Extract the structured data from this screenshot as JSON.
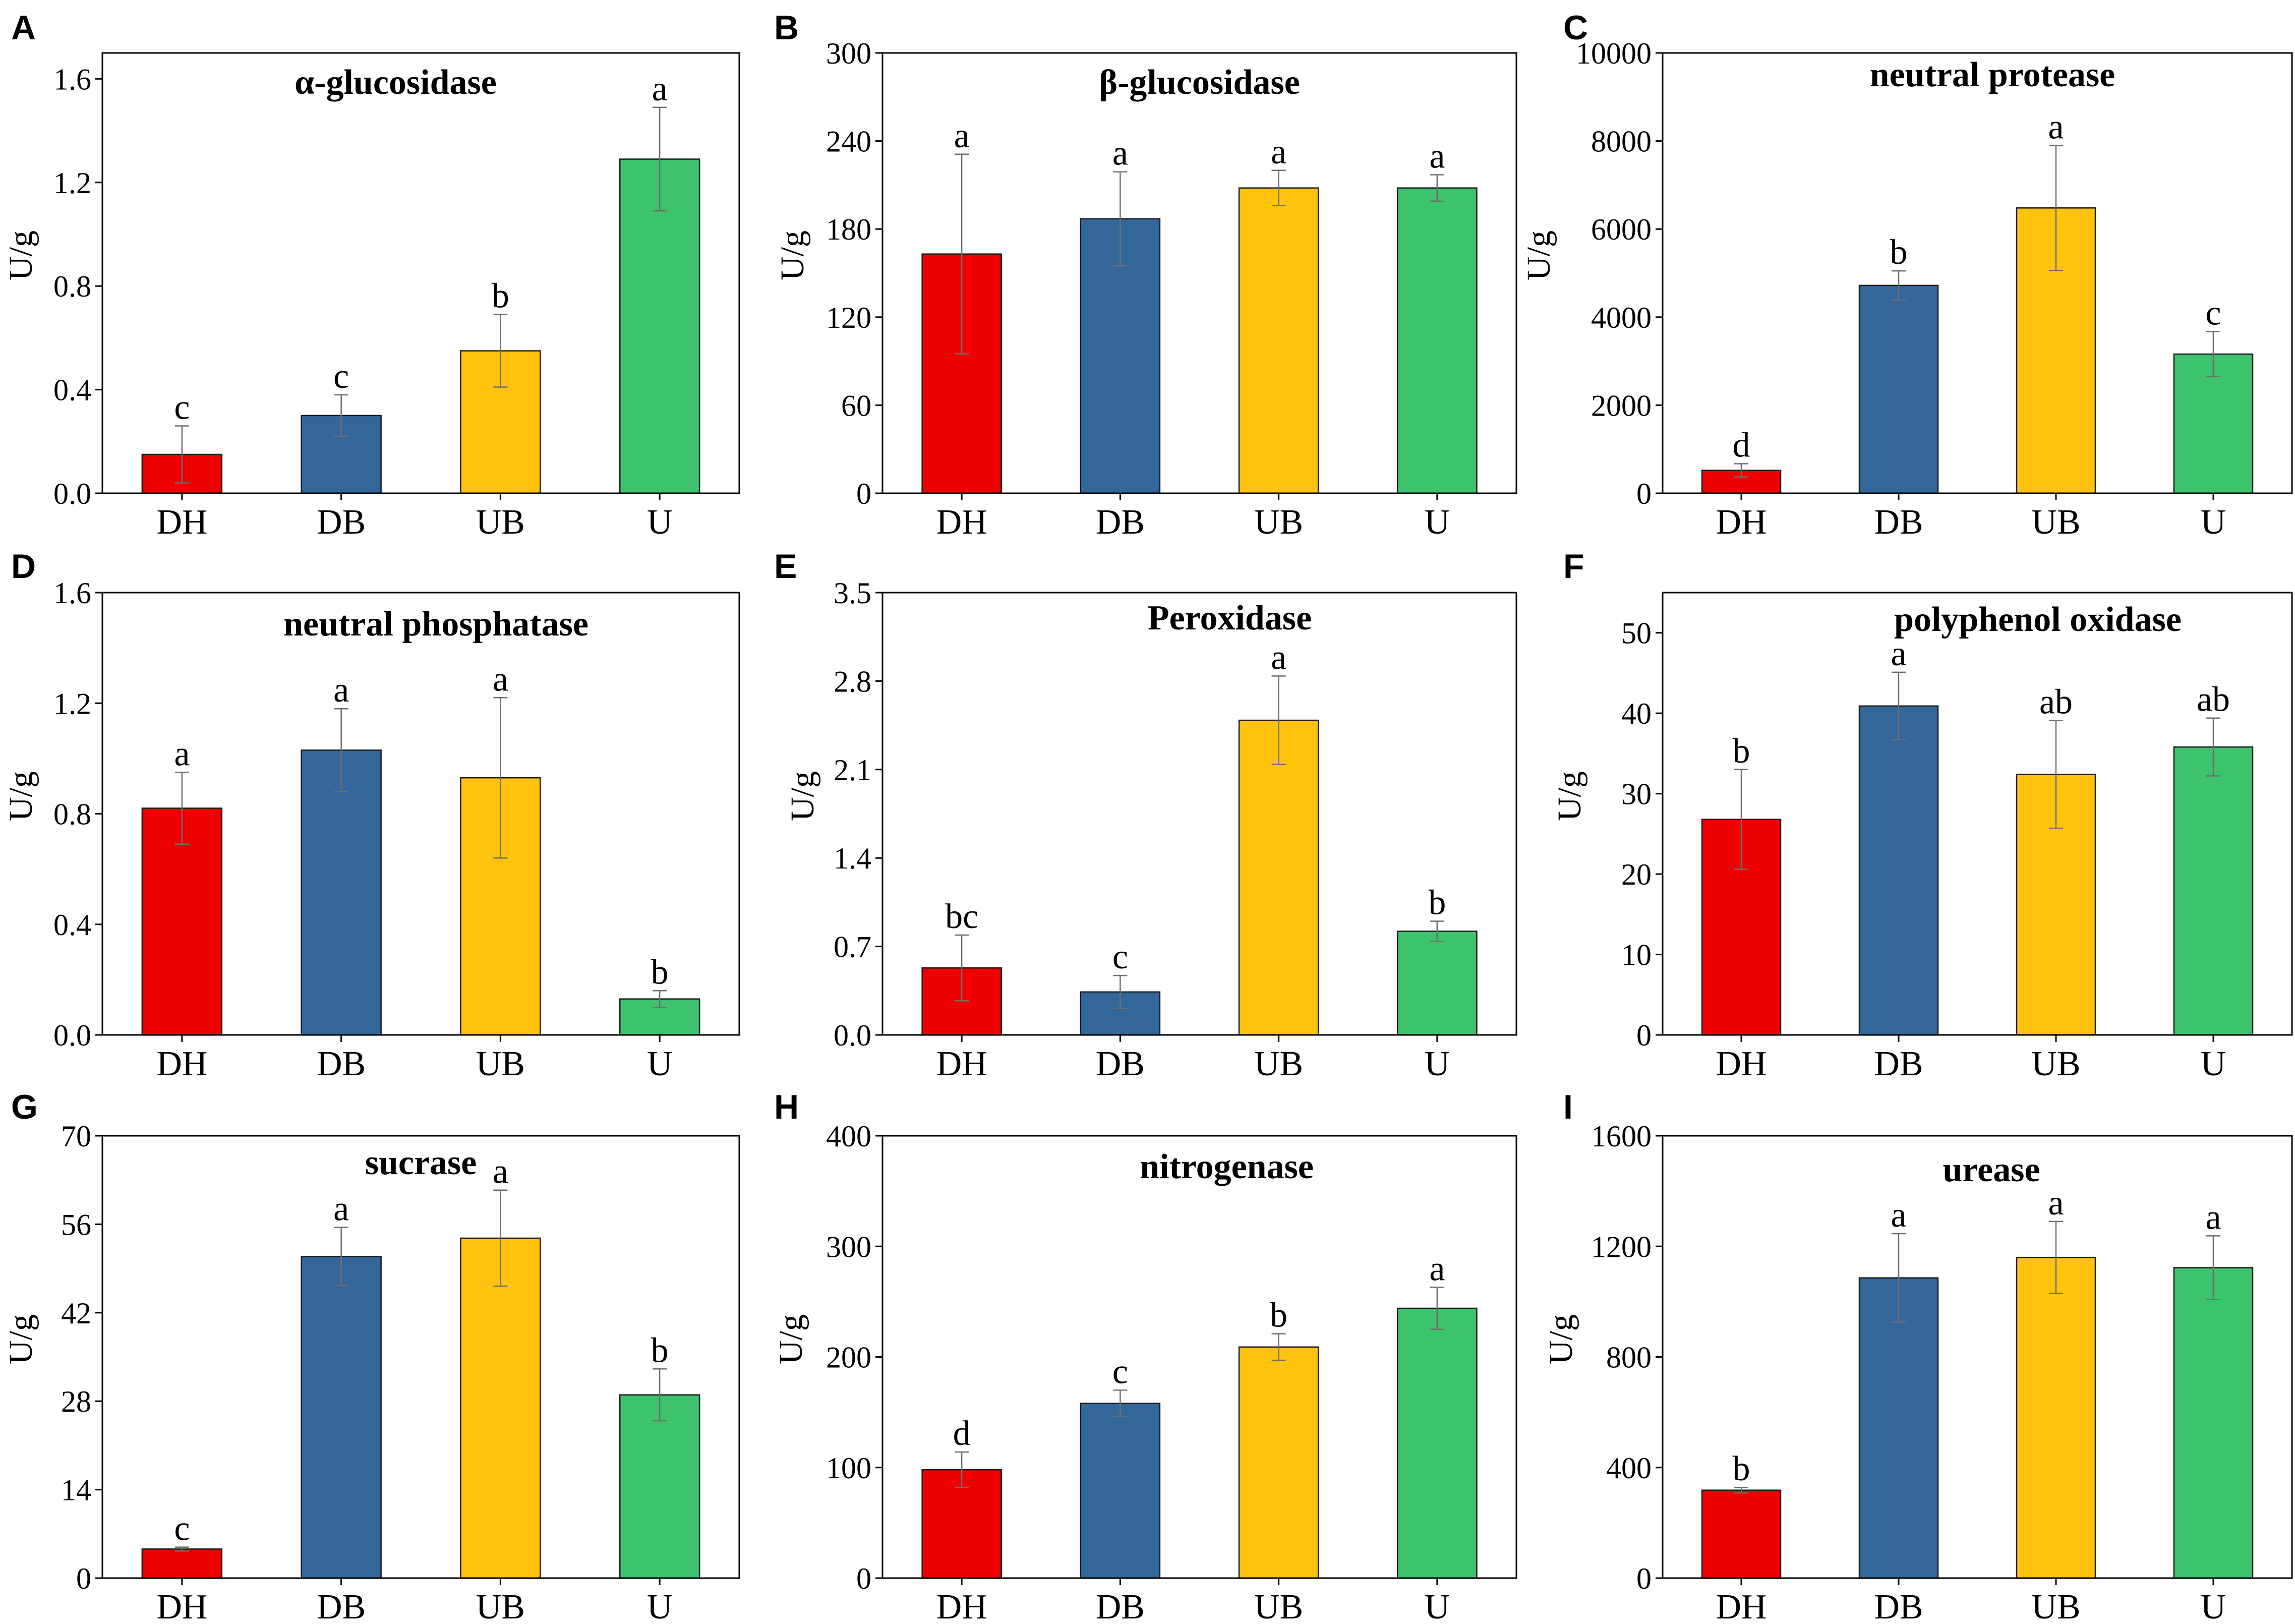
{
  "colors": {
    "DH": "#EE0000",
    "DB": "#336699",
    "UB": "#FFC20E",
    "U": "#3DC26D",
    "error_bar": "#6e6e6e"
  },
  "chart_data": [
    {
      "panel": "A",
      "type": "bar",
      "title": "α-glucosidase",
      "ylabel": "U/g",
      "categories": [
        "DH",
        "DB",
        "UB",
        "U"
      ],
      "values": [
        0.15,
        0.3,
        0.55,
        1.29
      ],
      "errors": [
        0.11,
        0.08,
        0.14,
        0.2
      ],
      "significance": [
        "c",
        "c",
        "b",
        "a"
      ],
      "ylim": [
        0,
        1.7
      ],
      "yticks": [
        "0.0",
        "0.4",
        "0.8",
        "1.2",
        "1.6"
      ]
    },
    {
      "panel": "B",
      "type": "bar",
      "title": "β-glucosidase",
      "ylabel": "U/g",
      "categories": [
        "DH",
        "DB",
        "UB",
        "U"
      ],
      "values": [
        163,
        187,
        208,
        208
      ],
      "errors": [
        68,
        32,
        12,
        9
      ],
      "significance": [
        "a",
        "a",
        "a",
        "a"
      ],
      "ylim": [
        0,
        300
      ],
      "yticks": [
        "0",
        "60",
        "120",
        "180",
        "240",
        "300"
      ]
    },
    {
      "panel": "C",
      "type": "bar",
      "title": "neutral protease",
      "ylabel": "U/g",
      "categories": [
        "DH",
        "DB",
        "UB",
        "U"
      ],
      "values": [
        520,
        4720,
        6480,
        3160
      ],
      "errors": [
        150,
        330,
        1420,
        510
      ],
      "significance": [
        "d",
        "b",
        "a",
        "c"
      ],
      "ylim": [
        0,
        10000
      ],
      "yticks": [
        "0",
        "2000",
        "4000",
        "6000",
        "8000",
        "10000"
      ]
    },
    {
      "panel": "D",
      "type": "bar",
      "title": "neutral phosphatase",
      "ylabel": "U/g",
      "categories": [
        "DH",
        "DB",
        "UB",
        "U"
      ],
      "values": [
        0.82,
        1.03,
        0.93,
        0.13
      ],
      "errors": [
        0.13,
        0.15,
        0.29,
        0.03
      ],
      "significance": [
        "a",
        "a",
        "a",
        "b"
      ],
      "ylim": [
        0,
        1.6
      ],
      "yticks": [
        "0.0",
        "0.4",
        "0.8",
        "1.2",
        "1.6"
      ]
    },
    {
      "panel": "E",
      "type": "bar",
      "title": "Peroxidase",
      "ylabel": "U/g",
      "categories": [
        "DH",
        "DB",
        "UB",
        "U"
      ],
      "values": [
        0.53,
        0.34,
        2.49,
        0.82
      ],
      "errors": [
        0.26,
        0.13,
        0.35,
        0.08
      ],
      "significance": [
        "bc",
        "c",
        "a",
        "b"
      ],
      "ylim": [
        0,
        3.5
      ],
      "yticks": [
        "0.0",
        "0.7",
        "1.4",
        "2.1",
        "2.8",
        "3.5"
      ]
    },
    {
      "panel": "F",
      "type": "bar",
      "title": "polyphenol oxidase",
      "ylabel": "U/g",
      "categories": [
        "DH",
        "DB",
        "UB",
        "U"
      ],
      "values": [
        26.8,
        40.9,
        32.4,
        35.8
      ],
      "errors": [
        6.2,
        4.2,
        6.7,
        3.6
      ],
      "significance": [
        "b",
        "a",
        "ab",
        "ab"
      ],
      "ylim": [
        0,
        55
      ],
      "yticks": [
        "0",
        "10",
        "20",
        "30",
        "40",
        "50"
      ]
    },
    {
      "panel": "G",
      "type": "bar",
      "title": "sucrase",
      "ylabel": "U/g",
      "categories": [
        "DH",
        "DB",
        "UB",
        "U"
      ],
      "values": [
        4.6,
        50.9,
        53.8,
        29.0
      ],
      "errors": [
        0.3,
        4.6,
        7.6,
        4.1
      ],
      "significance": [
        "c",
        "a",
        "a",
        "b"
      ],
      "ylim": [
        0,
        70
      ],
      "yticks": [
        "0",
        "14",
        "28",
        "42",
        "56",
        "70"
      ]
    },
    {
      "panel": "H",
      "type": "bar",
      "title": "nitrogenase",
      "ylabel": "U/g",
      "categories": [
        "DH",
        "DB",
        "UB",
        "U"
      ],
      "values": [
        98,
        158,
        209,
        244
      ],
      "errors": [
        16,
        12,
        12,
        19
      ],
      "significance": [
        "d",
        "c",
        "b",
        "a"
      ],
      "ylim": [
        0,
        400
      ],
      "yticks": [
        "0",
        "100",
        "200",
        "300",
        "400"
      ]
    },
    {
      "panel": "I",
      "type": "bar",
      "title": "urease",
      "ylabel": "U/g",
      "categories": [
        "DH",
        "DB",
        "UB",
        "U"
      ],
      "values": [
        318,
        1086,
        1160,
        1123
      ],
      "errors": [
        10,
        160,
        130,
        115
      ],
      "significance": [
        "b",
        "a",
        "a",
        "a"
      ],
      "ylim": [
        0,
        1600
      ],
      "yticks": [
        "0",
        "400",
        "800",
        "1200",
        "1600"
      ]
    }
  ]
}
